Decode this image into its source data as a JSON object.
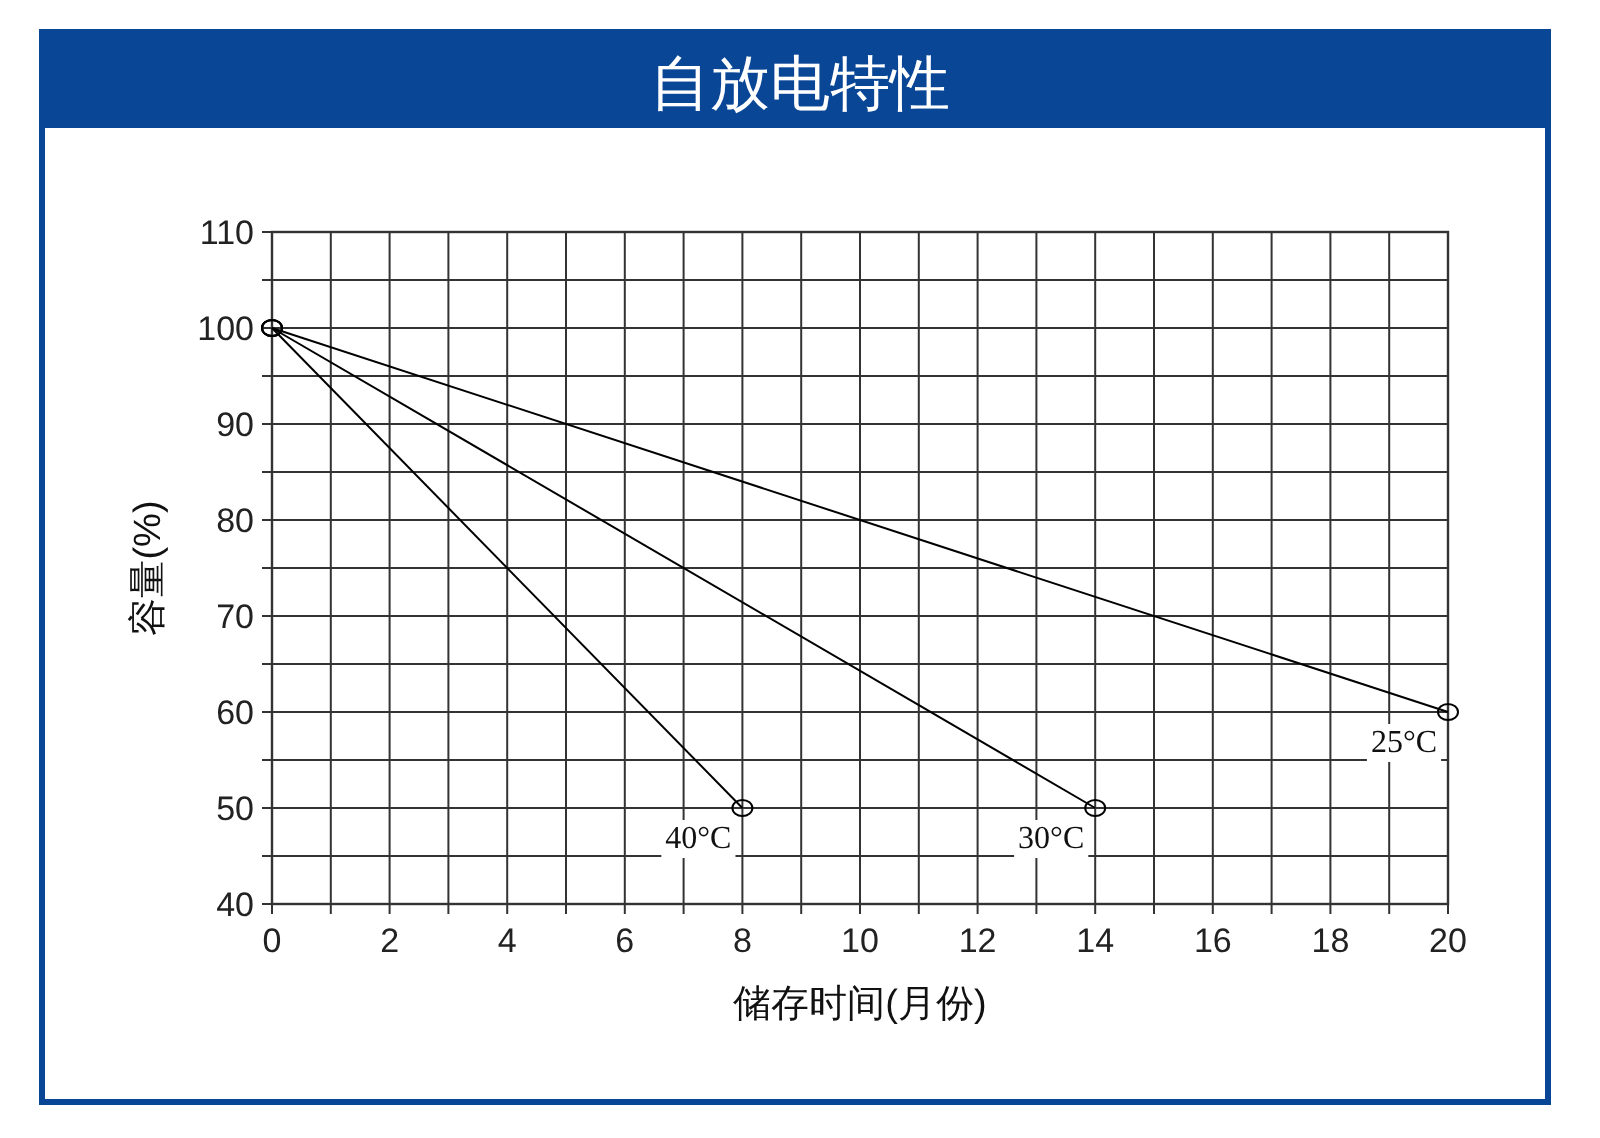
{
  "chart_data": {
    "type": "line",
    "title": "自放电特性",
    "xlabel": "储存时间(月份)",
    "ylabel": "容量(%)",
    "series": [
      {
        "name": "40°C",
        "color": "#000000",
        "x": [
          0,
          8
        ],
        "values": [
          100,
          50
        ]
      },
      {
        "name": "30°C",
        "color": "#000000",
        "x": [
          0,
          14
        ],
        "values": [
          100,
          50
        ]
      },
      {
        "name": "25°C",
        "color": "#000000",
        "x": [
          0,
          20
        ],
        "values": [
          100,
          60
        ]
      }
    ],
    "xlim": [
      0,
      20
    ],
    "xticks": [
      0,
      {
        "value": 1,
        "label": null
      },
      2,
      {
        "value": 3,
        "label": null
      },
      4,
      {
        "value": 5,
        "label": null
      },
      6,
      {
        "value": 7,
        "label": null
      },
      8,
      {
        "value": 9,
        "label": null
      },
      10,
      {
        "value": 11,
        "label": null
      },
      12,
      {
        "value": 13,
        "label": null
      },
      14,
      {
        "value": 15,
        "label": null
      },
      16,
      {
        "value": 17,
        "label": null
      },
      18,
      {
        "value": 19,
        "label": null
      },
      20
    ],
    "ylim": [
      40,
      110
    ],
    "yticks": [
      40,
      {
        "value": 45,
        "label": null
      },
      50,
      {
        "value": 55,
        "label": null
      },
      60,
      {
        "value": 65,
        "label": null
      },
      70,
      {
        "value": 75,
        "label": null
      },
      80,
      {
        "value": 85,
        "label": null
      },
      90,
      {
        "value": 95,
        "label": null
      },
      100,
      {
        "value": 105,
        "label": null
      },
      110
    ],
    "grid": true,
    "marker": "circle",
    "line_style": "solid"
  }
}
